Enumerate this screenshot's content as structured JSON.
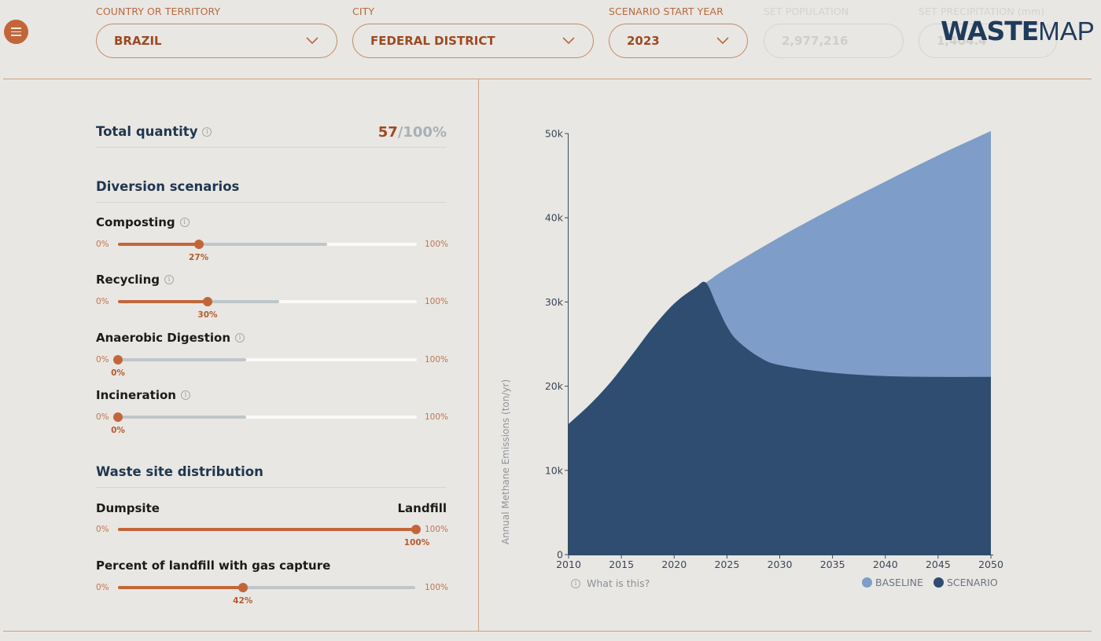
{
  "header": {
    "fields": [
      {
        "label": "COUNTRY OR TERRITORY",
        "value": "BRAZIL",
        "enabled": true
      },
      {
        "label": "CITY",
        "value": "FEDERAL DISTRICT",
        "enabled": true
      },
      {
        "label": "SCENARIO START YEAR",
        "value": "2023",
        "enabled": true
      },
      {
        "label": "SET POPULATION",
        "value": "2,977,216",
        "enabled": false
      },
      {
        "label": "SET PRECIPITATION (mm)",
        "value": "1,404.4",
        "enabled": false
      }
    ],
    "logo_bold": "WASTE",
    "logo_light": "MAP"
  },
  "icons": {
    "menu": "hamburger-menu-icon",
    "chevron": "chevron-down-icon",
    "info": "info-icon"
  },
  "left_panel": {
    "total_quantity": {
      "label": "Total quantity",
      "value": "57",
      "max": "/100%"
    },
    "diversion": {
      "title": "Diversion scenarios",
      "sliders": [
        {
          "label": "Composting",
          "value": 27,
          "value_label": "27%",
          "cap": 0.7,
          "min_label": "0%",
          "max_label": "100%"
        },
        {
          "label": "Recycling",
          "value": 30,
          "value_label": "30%",
          "cap": 0.54,
          "min_label": "0%",
          "max_label": "100%"
        },
        {
          "label": "Anaerobic Digestion",
          "value": 0,
          "value_label": "0%",
          "cap": 0.43,
          "min_label": "0%",
          "max_label": "100%"
        },
        {
          "label": "Incineration",
          "value": 0,
          "value_label": "0%",
          "cap": 0.43,
          "min_label": "0%",
          "max_label": "100%"
        }
      ]
    },
    "site": {
      "title": "Waste site distribution",
      "left_label": "Dumpsite",
      "right_label": "Landfill",
      "distribution": {
        "value": 100,
        "value_label": "100%",
        "min_label": "0%",
        "max_label": "100%"
      },
      "gas_capture": {
        "label": "Percent of landfill with gas capture",
        "value": 42,
        "value_label": "42%",
        "min_label": "0%",
        "max_label": "100%"
      }
    }
  },
  "chart_data": {
    "type": "area",
    "ylabel": "Annual Methane Emissions (ton/yr)",
    "x_ticks": [
      "2010",
      "2015",
      "2020",
      "2025",
      "2030",
      "2035",
      "2040",
      "2045",
      "2050"
    ],
    "y_ticks": [
      "0",
      "10k",
      "20k",
      "30k",
      "40k",
      "50k"
    ],
    "xlim": [
      2010,
      2050
    ],
    "ylim": [
      0,
      50000
    ],
    "grid": false,
    "legend_position": "bottom-right",
    "series": [
      {
        "name": "BASELINE",
        "color": "#7e9dc8",
        "x": [
          2010,
          2012,
          2014,
          2016,
          2018,
          2020,
          2022,
          2023,
          2025,
          2030,
          2035,
          2040,
          2045,
          2050
        ],
        "values": [
          15500,
          17800,
          20500,
          23700,
          27000,
          29800,
          31700,
          32300,
          34000,
          37700,
          41100,
          44300,
          47400,
          50300
        ]
      },
      {
        "name": "SCENARIO",
        "color": "#2e4d70",
        "x": [
          2010,
          2012,
          2014,
          2016,
          2018,
          2020,
          2022,
          2023,
          2024,
          2025,
          2026,
          2028,
          2030,
          2035,
          2040,
          2045,
          2050
        ],
        "values": [
          15500,
          17800,
          20500,
          23700,
          27000,
          29800,
          31700,
          32300,
          29700,
          27100,
          25400,
          23500,
          22500,
          21600,
          21200,
          21100,
          21100
        ]
      }
    ],
    "footnote": "What is this?"
  }
}
